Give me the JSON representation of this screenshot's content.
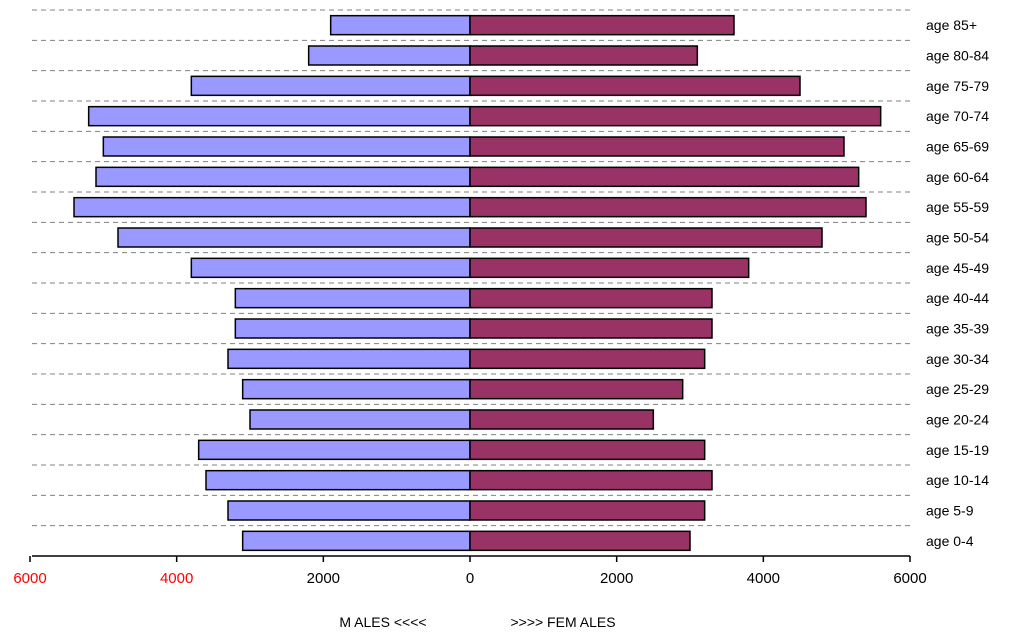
{
  "chart_data": {
    "type": "bar",
    "orientation": "horizontal",
    "layout": "population-pyramid",
    "categories": [
      "age 0-4",
      "age 5-9",
      "age 10-14",
      "age 15-19",
      "age 20-24",
      "age 25-29",
      "age 30-34",
      "age 35-39",
      "age 40-44",
      "age 45-49",
      "age 50-54",
      "age 55-59",
      "age 60-64",
      "age 65-69",
      "age 70-74",
      "age 75-79",
      "age 80-84",
      "age 85+"
    ],
    "series": [
      {
        "name": "MALES",
        "side": "left",
        "color": "#9999ff",
        "values": [
          3100,
          3300,
          3600,
          3700,
          3000,
          3100,
          3300,
          3200,
          3200,
          3800,
          4800,
          5400,
          5100,
          5000,
          5200,
          3800,
          2200,
          1900
        ]
      },
      {
        "name": "FEMALES",
        "side": "right",
        "color": "#993366",
        "values": [
          3000,
          3200,
          3300,
          3200,
          2500,
          2900,
          3200,
          3300,
          3300,
          3800,
          4800,
          5400,
          5300,
          5100,
          5600,
          4500,
          3100,
          3600
        ]
      }
    ],
    "x_ticks": [
      {
        "label": "6000",
        "value": -6000,
        "color": "#ff0000"
      },
      {
        "label": "4000",
        "value": -4000,
        "color": "#ff0000"
      },
      {
        "label": "2000",
        "value": -2000,
        "color": "#000000"
      },
      {
        "label": "0",
        "value": 0,
        "color": "#000000"
      },
      {
        "label": "2000",
        "value": 2000,
        "color": "#000000"
      },
      {
        "label": "4000",
        "value": 4000,
        "color": "#000000"
      },
      {
        "label": "6000",
        "value": 6000,
        "color": "#000000"
      }
    ],
    "xlim": [
      -6000,
      6000
    ],
    "xlabel_left": "M ALES <<<<",
    "xlabel_right": ">>>> FEM ALES",
    "grid": "dashed horizontal",
    "legend": "none"
  }
}
